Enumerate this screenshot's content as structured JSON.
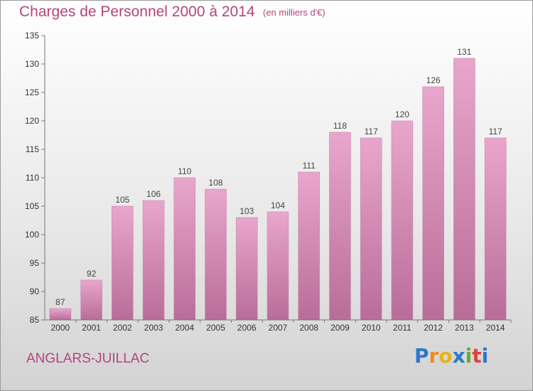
{
  "header": {
    "title": "Charges de Personnel 2000 à 2014",
    "unit_note": "(en milliers d'€)"
  },
  "footer": {
    "commune": "ANGLARS-JUILLAC",
    "brand": "Proxiti",
    "brand_letters": [
      "P",
      "r",
      "o",
      "x",
      "i",
      "t",
      "i"
    ]
  },
  "colors": {
    "accent": "#b4457d",
    "bar_top": "#e9a6cc",
    "bar_bottom": "#b86d98",
    "brand_letters": [
      "#2a78c8",
      "#f08a1a",
      "#e8b21a",
      "#2a78c8",
      "#6aaa2a",
      "#e04040",
      "#2a78c8"
    ]
  },
  "chart_data": {
    "type": "bar",
    "categories": [
      "2000",
      "2001",
      "2002",
      "2003",
      "2004",
      "2005",
      "2006",
      "2007",
      "2008",
      "2009",
      "2010",
      "2011",
      "2012",
      "2013",
      "2014"
    ],
    "values": [
      87,
      92,
      105,
      106,
      110,
      108,
      103,
      104,
      111,
      118,
      117,
      120,
      126,
      131,
      117
    ],
    "ylim": [
      85,
      135
    ],
    "yticks": [
      85,
      90,
      95,
      100,
      105,
      110,
      115,
      120,
      125,
      130,
      135
    ],
    "grid": false,
    "data_labels": true
  }
}
